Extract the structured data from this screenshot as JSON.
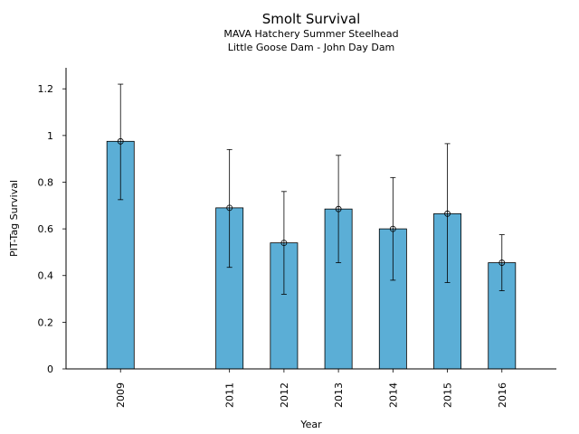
{
  "chart_data": {
    "type": "bar",
    "title": "Smolt Survival",
    "subtitle": [
      "MAVA Hatchery Summer Steelhead",
      "Little Goose Dam - John Day Dam"
    ],
    "xlabel": "Year",
    "ylabel": "PIT-Tag Survival",
    "categories": [
      "2009",
      "2011",
      "2012",
      "2013",
      "2014",
      "2015",
      "2016"
    ],
    "x_positions": [
      2009,
      2011,
      2012,
      2013,
      2014,
      2015,
      2016
    ],
    "values": [
      0.975,
      0.69,
      0.54,
      0.685,
      0.6,
      0.665,
      0.455
    ],
    "error_upper": [
      1.22,
      0.94,
      0.76,
      0.915,
      0.82,
      0.965,
      0.575
    ],
    "error_lower": [
      0.725,
      0.435,
      0.32,
      0.455,
      0.38,
      0.37,
      0.335
    ],
    "yticks": [
      0,
      0.2,
      0.4,
      0.6,
      0.8,
      1,
      1.2
    ],
    "ytick_labels": [
      "0",
      "0.2",
      "0.4",
      "0.6",
      "0.8",
      "1",
      "1.2"
    ],
    "ylim": [
      0,
      1.29
    ],
    "xlim": [
      2008.0,
      2017.0
    ],
    "bar_color": "#5baed6",
    "grid": false,
    "legend": "none"
  }
}
